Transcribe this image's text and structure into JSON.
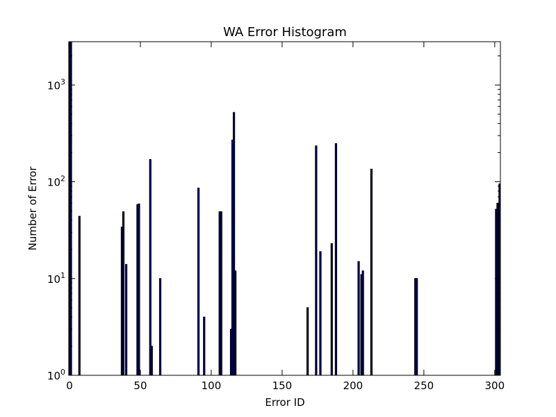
{
  "chart_data": {
    "type": "bar",
    "title": "WA Error Histogram",
    "xlabel": "Error ID",
    "ylabel": "Number of Error",
    "xlim": [
      0,
      304
    ],
    "ylim": [
      1,
      2800
    ],
    "yscale": "log",
    "grid": false,
    "x_ticks": [
      "0",
      "50",
      "100",
      "150",
      "200",
      "250",
      "300"
    ],
    "y_ticks": [
      {
        "base": "10",
        "exp": "0"
      },
      {
        "base": "10",
        "exp": "1"
      },
      {
        "base": "10",
        "exp": "2"
      },
      {
        "base": "10",
        "exp": "3"
      }
    ],
    "bar_color": "#00007f",
    "bars": [
      {
        "x": 0,
        "y": 2800
      },
      {
        "x": 1,
        "y": 2800
      },
      {
        "x": 7,
        "y": 44
      },
      {
        "x": 37,
        "y": 34
      },
      {
        "x": 38,
        "y": 49
      },
      {
        "x": 40,
        "y": 14
      },
      {
        "x": 48,
        "y": 58
      },
      {
        "x": 49,
        "y": 59
      },
      {
        "x": 57,
        "y": 170
      },
      {
        "x": 58,
        "y": 2
      },
      {
        "x": 64,
        "y": 10
      },
      {
        "x": 91,
        "y": 86
      },
      {
        "x": 95,
        "y": 4
      },
      {
        "x": 106,
        "y": 49
      },
      {
        "x": 107,
        "y": 49
      },
      {
        "x": 114,
        "y": 3
      },
      {
        "x": 115,
        "y": 270
      },
      {
        "x": 116,
        "y": 520
      },
      {
        "x": 117,
        "y": 12
      },
      {
        "x": 168,
        "y": 5
      },
      {
        "x": 174,
        "y": 235
      },
      {
        "x": 177,
        "y": 19
      },
      {
        "x": 185,
        "y": 23
      },
      {
        "x": 188,
        "y": 248
      },
      {
        "x": 204,
        "y": 15
      },
      {
        "x": 206,
        "y": 11
      },
      {
        "x": 207,
        "y": 12
      },
      {
        "x": 213,
        "y": 135
      },
      {
        "x": 244,
        "y": 10
      },
      {
        "x": 245,
        "y": 10
      },
      {
        "x": 301,
        "y": 52
      },
      {
        "x": 302,
        "y": 60
      },
      {
        "x": 303,
        "y": 32
      },
      {
        "x": 304,
        "y": 95
      }
    ]
  }
}
